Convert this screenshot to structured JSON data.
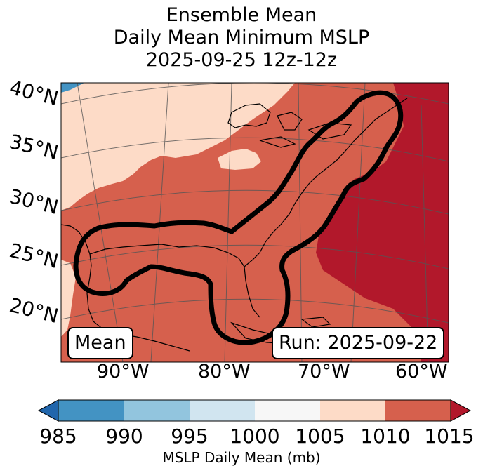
{
  "title": {
    "line1": "Ensemble Mean",
    "line2": "Daily Mean Minimum MSLP",
    "line3": "2025-09-25 12z-12z"
  },
  "map": {
    "lat_labels": [
      "40°N",
      "35°N",
      "30°N",
      "25°N",
      "20°N"
    ],
    "lon_labels": [
      "90°W",
      "80°W",
      "70°W",
      "60°W"
    ],
    "mean_box": "Mean",
    "run_box": "Run: 2025-09-22",
    "contour_color": "#000000"
  },
  "colorbar": {
    "ticks": [
      "985",
      "990",
      "995",
      "1000",
      "1005",
      "1010",
      "1015"
    ],
    "label": "MSLP Daily Mean (mb)",
    "colors": [
      "#2166ac",
      "#4393c3",
      "#92c5de",
      "#d1e5f0",
      "#f7f7f7",
      "#fddbc7",
      "#d6604d",
      "#b2182b"
    ]
  }
}
